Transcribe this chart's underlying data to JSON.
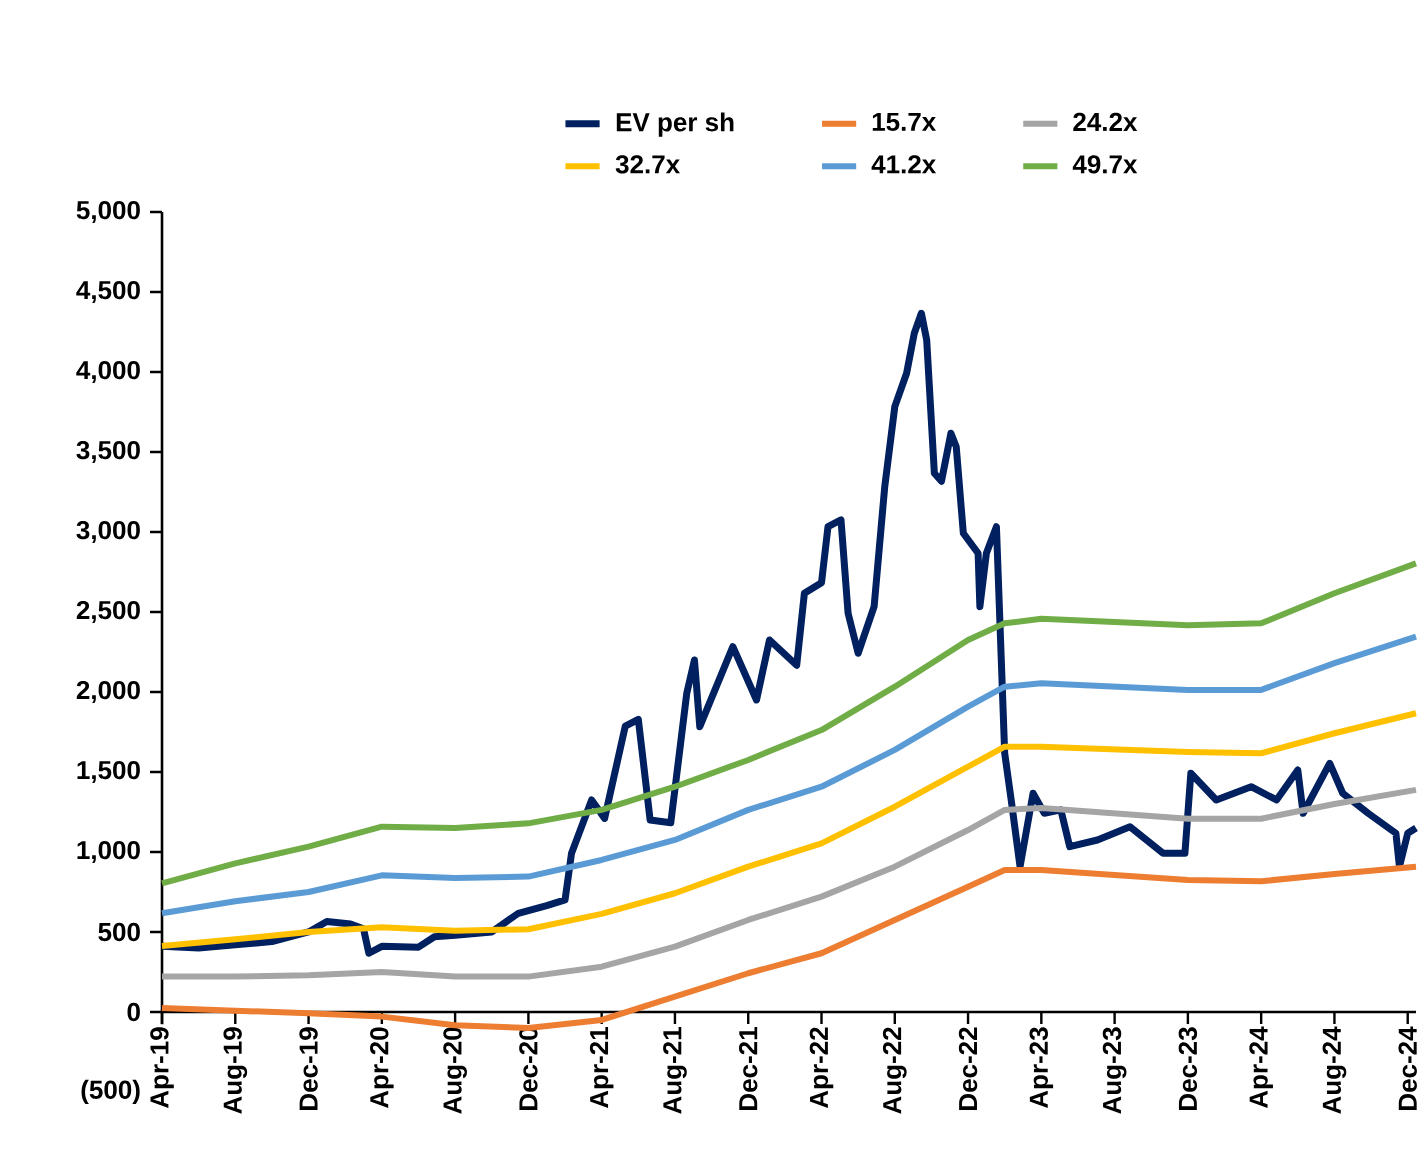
{
  "chart_data": {
    "type": "line",
    "legend": "top",
    "xlim": [
      "2019-04-01",
      "2024-12-15"
    ],
    "xticks": [
      {
        "value": "2019-04",
        "label": "Apr-19"
      },
      {
        "value": "2019-08",
        "label": "Aug-19"
      },
      {
        "value": "2019-12",
        "label": "Dec-19"
      },
      {
        "value": "2020-04",
        "label": "Apr-20"
      },
      {
        "value": "2020-08",
        "label": "Aug-20"
      },
      {
        "value": "2020-12",
        "label": "Dec-20"
      },
      {
        "value": "2021-04",
        "label": "Apr-21"
      },
      {
        "value": "2021-08",
        "label": "Aug-21"
      },
      {
        "value": "2021-12",
        "label": "Dec-21"
      },
      {
        "value": "2022-04",
        "label": "Apr-22"
      },
      {
        "value": "2022-08",
        "label": "Aug-22"
      },
      {
        "value": "2022-12",
        "label": "Dec-22"
      },
      {
        "value": "2023-04",
        "label": "Apr-23"
      },
      {
        "value": "2023-08",
        "label": "Aug-23"
      },
      {
        "value": "2023-12",
        "label": "Dec-23"
      },
      {
        "value": "2024-04",
        "label": "Apr-24"
      },
      {
        "value": "2024-08",
        "label": "Aug-24"
      },
      {
        "value": "2024-12",
        "label": "Dec-24"
      }
    ],
    "ylim": [
      -500,
      5000
    ],
    "yticks": [
      {
        "value": -500,
        "label": "(500)"
      },
      0,
      500,
      {
        "value": 1000,
        "label": "1,000"
      },
      {
        "value": 1500,
        "label": "1,500"
      },
      {
        "value": 2000,
        "label": "2,000"
      },
      {
        "value": 2500,
        "label": "2,500"
      },
      {
        "value": 3000,
        "label": "3,000"
      },
      {
        "value": 3500,
        "label": "3,500"
      },
      {
        "value": 4000,
        "label": "4,000"
      },
      {
        "value": 4500,
        "label": "4,500"
      },
      {
        "value": 5000,
        "label": "5,000"
      }
    ],
    "series": [
      {
        "name": "EV per sh",
        "color": "#002060",
        "x": [
          "2019-04-01",
          "2019-06-01",
          "2019-08-01",
          "2019-10-01",
          "2019-12-01",
          "2020-01-01",
          "2020-02-10",
          "2020-03-01",
          "2020-03-10",
          "2020-04-01",
          "2020-06-01",
          "2020-06-28",
          "2020-08-01",
          "2020-10-01",
          "2020-11-15",
          "2021-01-01",
          "2021-02-01",
          "2021-02-12",
          "2021-03-15",
          "2021-04-06",
          "2021-05-10",
          "2021-06-01",
          "2021-06-21",
          "2021-07-25",
          "2021-08-21",
          "2021-09-03",
          "2021-09-12",
          "2021-11-06",
          "2021-12-15",
          "2022-01-06",
          "2022-02-21",
          "2022-03-03",
          "2022-04-01",
          "2022-04-12",
          "2022-05-03",
          "2022-05-15",
          "2022-06-01",
          "2022-06-28",
          "2022-07-15",
          "2022-08-01",
          "2022-08-21",
          "2022-09-03",
          "2022-09-15",
          "2022-09-24",
          "2022-10-06",
          "2022-10-18",
          "2022-11-03",
          "2022-11-12",
          "2022-11-24",
          "2022-12-18",
          "2022-12-21",
          "2023-01-01",
          "2023-01-18",
          "2023-02-01",
          "2023-02-12",
          "2023-02-27",
          "2023-03-18",
          "2023-04-06",
          "2023-05-03",
          "2023-05-18",
          "2023-07-03",
          "2023-08-27",
          "2023-10-21",
          "2023-11-27",
          "2023-12-06",
          "2024-01-18",
          "2024-03-15",
          "2024-04-27",
          "2024-06-01",
          "2024-06-10",
          "2024-07-24",
          "2024-08-15",
          "2024-09-27",
          "2024-11-12",
          "2024-11-18",
          "2024-12-01",
          "2024-12-15"
        ],
        "values": [
          410,
          400,
          420,
          440,
          500,
          565,
          550,
          520,
          367,
          410,
          405,
          470,
          480,
          500,
          617,
          665,
          700,
          992,
          1325,
          1210,
          1787,
          1829,
          1200,
          1183,
          1992,
          2200,
          1783,
          2283,
          1950,
          2325,
          2167,
          2617,
          2683,
          3033,
          3075,
          2492,
          2242,
          2533,
          3283,
          3783,
          3992,
          4242,
          4367,
          4200,
          3367,
          3317,
          3617,
          3533,
          2992,
          2867,
          2533,
          2867,
          3033,
          1617,
          1325,
          908,
          1367,
          1242,
          1263,
          1033,
          1075,
          1158,
          992,
          992,
          1492,
          1325,
          1408,
          1325,
          1512,
          1242,
          1554,
          1367,
          1242,
          1117,
          908,
          1117,
          1150
        ]
      },
      {
        "name": "15.7x",
        "color": "#ed7d31",
        "x": [
          "2019-04-01",
          "2019-08-01",
          "2019-12-01",
          "2020-04-01",
          "2020-08-01",
          "2020-12-01",
          "2021-04-01",
          "2021-08-01",
          "2021-12-01",
          "2022-04-01",
          "2022-08-01",
          "2022-12-01",
          "2023-02-01",
          "2023-04-01",
          "2023-12-01",
          "2024-04-01",
          "2024-08-01",
          "2024-12-15"
        ],
        "values": [
          25,
          8,
          -8,
          -29,
          -83,
          -100,
          -50,
          96,
          242,
          367,
          575,
          783,
          887,
          887,
          825,
          817,
          862,
          908
        ]
      },
      {
        "name": "24.2x",
        "color": "#a5a5a5",
        "x": [
          "2019-04-01",
          "2019-08-01",
          "2019-12-01",
          "2020-04-01",
          "2020-08-01",
          "2020-12-01",
          "2021-04-01",
          "2021-08-01",
          "2021-12-01",
          "2022-04-01",
          "2022-08-01",
          "2022-12-01",
          "2023-02-01",
          "2023-04-01",
          "2023-12-01",
          "2024-04-01",
          "2024-08-01",
          "2024-12-15"
        ],
        "values": [
          221,
          221,
          229,
          250,
          221,
          221,
          283,
          408,
          575,
          721,
          908,
          1137,
          1263,
          1275,
          1208,
          1208,
          1300,
          1388
        ]
      },
      {
        "name": "32.7x",
        "color": "#ffc000",
        "x": [
          "2019-04-01",
          "2019-08-01",
          "2019-12-01",
          "2020-04-01",
          "2020-08-01",
          "2020-12-01",
          "2021-04-01",
          "2021-08-01",
          "2021-12-01",
          "2022-04-01",
          "2022-08-01",
          "2022-12-01",
          "2023-02-01",
          "2023-04-01",
          "2023-12-01",
          "2024-04-01",
          "2024-08-01",
          "2024-12-15"
        ],
        "values": [
          412,
          454,
          500,
          529,
          508,
          517,
          613,
          742,
          908,
          1054,
          1283,
          1533,
          1658,
          1658,
          1625,
          1617,
          1742,
          1867
        ]
      },
      {
        "name": "41.2x",
        "color": "#5b9bd5",
        "x": [
          "2019-04-01",
          "2019-08-01",
          "2019-12-01",
          "2020-04-01",
          "2020-08-01",
          "2020-12-01",
          "2021-04-01",
          "2021-08-01",
          "2021-12-01",
          "2022-04-01",
          "2022-08-01",
          "2022-12-01",
          "2023-02-01",
          "2023-04-01",
          "2023-12-01",
          "2024-04-01",
          "2024-08-01",
          "2024-12-15"
        ],
        "values": [
          617,
          692,
          750,
          854,
          837,
          846,
          950,
          1075,
          1263,
          1408,
          1638,
          1908,
          2033,
          2054,
          2013,
          2013,
          2180,
          2346
        ]
      },
      {
        "name": "49.7x",
        "color": "#70ad47",
        "x": [
          "2019-04-01",
          "2019-08-01",
          "2019-12-01",
          "2020-04-01",
          "2020-08-01",
          "2020-12-01",
          "2021-04-01",
          "2021-08-01",
          "2021-12-01",
          "2022-04-01",
          "2022-08-01",
          "2022-12-01",
          "2023-02-01",
          "2023-04-01",
          "2023-12-01",
          "2024-04-01",
          "2024-08-01",
          "2024-12-15"
        ],
        "values": [
          804,
          929,
          1033,
          1158,
          1150,
          1179,
          1263,
          1408,
          1575,
          1762,
          2033,
          2325,
          2429,
          2458,
          2417,
          2429,
          2617,
          2804
        ]
      }
    ]
  }
}
